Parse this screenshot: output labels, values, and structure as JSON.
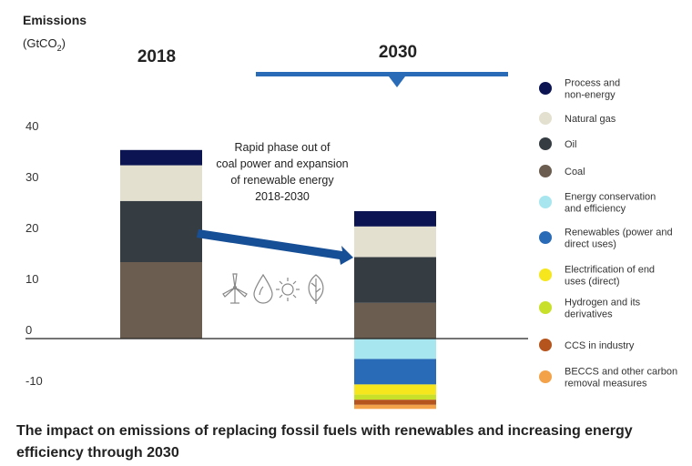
{
  "chart_data": {
    "type": "bar",
    "stacked": true,
    "ylabel": "Emissions",
    "ylabel_unit_prefix": "(GtCO",
    "ylabel_unit_sub": "2",
    "ylabel_unit_suffix": ")",
    "yticks": [
      "40",
      "30",
      "20",
      "10",
      "0",
      "-10"
    ],
    "ylim": [
      -14,
      42
    ],
    "categories": [
      "2018",
      "2030"
    ],
    "series": [
      {
        "name": "Coal",
        "color": "#6b5d4f",
        "values": [
          15,
          7
        ]
      },
      {
        "name": "Oil",
        "color": "#363d42",
        "values": [
          12,
          9
        ]
      },
      {
        "name": "Natural gas",
        "color": "#e3e0cf",
        "values": [
          7,
          6
        ]
      },
      {
        "name": "Process and non-energy",
        "color": "#0d1452",
        "values": [
          3,
          3
        ]
      },
      {
        "name": "Energy conservation and efficiency",
        "color": "#a8e6ef",
        "values": [
          0,
          -4
        ]
      },
      {
        "name": "Renewables (power and direct uses)",
        "color": "#2a6bb8",
        "values": [
          0,
          -5
        ]
      },
      {
        "name": "Electrification of end uses (direct)",
        "color": "#f5e61e",
        "values": [
          0,
          -2
        ]
      },
      {
        "name": "Hydrogen and its derivatives",
        "color": "#c8e02a",
        "values": [
          0,
          -1
        ]
      },
      {
        "name": "CCS in industry",
        "color": "#b5541c",
        "values": [
          0,
          -1
        ]
      },
      {
        "name": "BECCS and other carbon removal measures",
        "color": "#f3a24a",
        "values": [
          0,
          -0.8
        ]
      }
    ],
    "annotation": {
      "lines": [
        "Rapid phase out of",
        "coal power and expansion",
        "of renewable energy"
      ],
      "period": "2018-2030"
    }
  },
  "legend": [
    {
      "lines": [
        "Process and",
        "non-energy"
      ],
      "color": "#0d1452"
    },
    {
      "lines": [
        "Natural gas"
      ],
      "color": "#e3e0cf"
    },
    {
      "lines": [
        "Oil"
      ],
      "color": "#363d42"
    },
    {
      "lines": [
        "Coal"
      ],
      "color": "#6b5d4f"
    },
    {
      "lines": [
        "Energy conservation",
        "and efficiency"
      ],
      "color": "#a8e6ef"
    },
    {
      "lines": [
        "Renewables (power and",
        "direct uses)"
      ],
      "color": "#2a6bb8"
    },
    {
      "lines": [
        "Electrification of end",
        "uses (direct)"
      ],
      "color": "#f5e61e"
    },
    {
      "lines": [
        "Hydrogen and its",
        "derivatives"
      ],
      "color": "#c8e02a"
    },
    {
      "lines": [
        "CCS in industry"
      ],
      "color": "#b5541c"
    },
    {
      "lines": [
        "BECCS and other carbon",
        "removal measures"
      ],
      "color": "#f3a24a"
    }
  ],
  "icons": [
    "wind-turbine-icon",
    "water-drop-icon",
    "sun-icon",
    "leaf-icon"
  ],
  "caption": "The impact on emissions of replacing fossil fuels with renewables and increasing energy efficiency through 2030"
}
